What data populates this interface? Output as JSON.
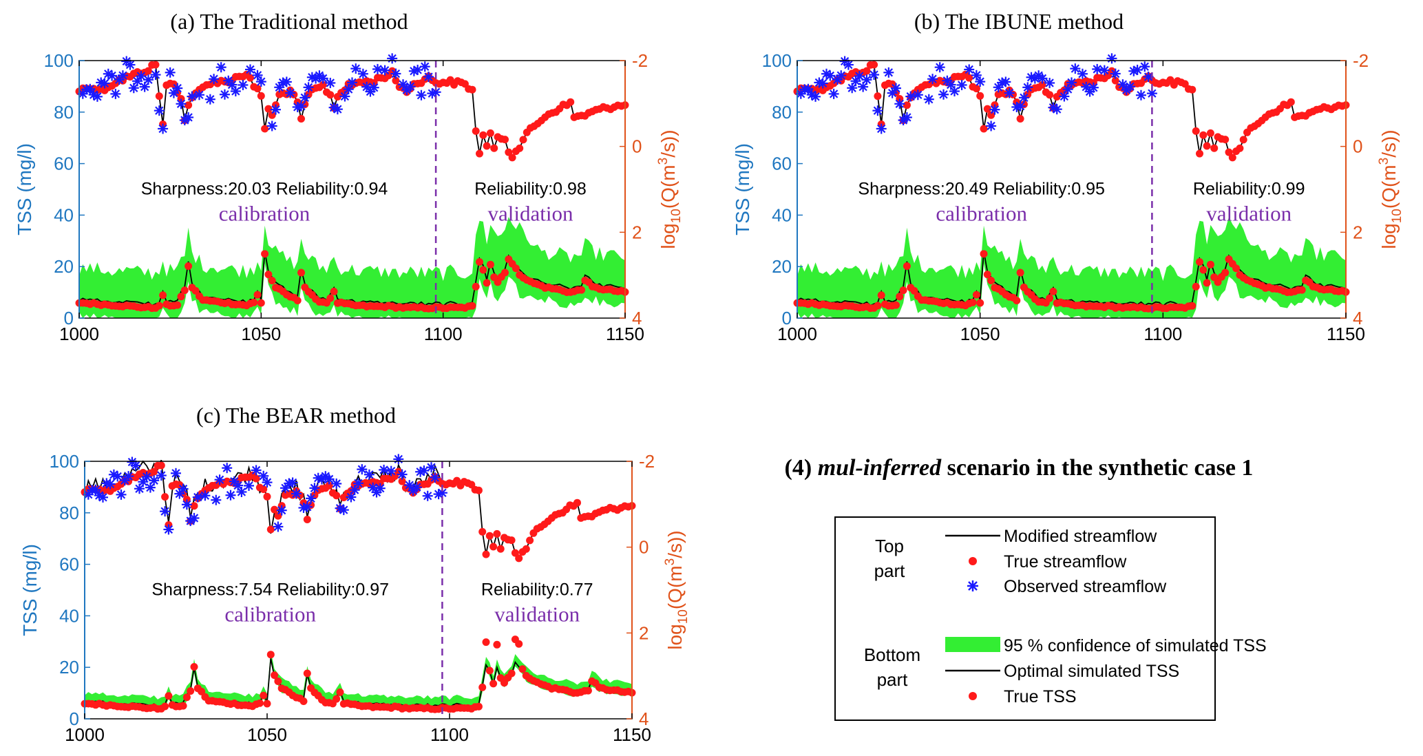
{
  "figure_title": {
    "prefix": "(4) ",
    "italic": "mul-inferred",
    "rest": " scenario in the synthetic case 1"
  },
  "legend": {
    "top_part_label_1": "Top",
    "top_part_label_2": "part",
    "bottom_part_label_1": "Bottom",
    "bottom_part_label_2": "part",
    "items": [
      {
        "label": "Modified streamflow",
        "symbol": "black-line-icon"
      },
      {
        "label": "True streamflow",
        "symbol": "red-dot-icon"
      },
      {
        "label": "Observed streamflow",
        "symbol": "blue-star-icon"
      },
      {
        "label": "95 % confidence of simulated TSS",
        "symbol": "green-band-icon"
      },
      {
        "label": "Optimal simulated TSS",
        "symbol": "black-line-icon"
      },
      {
        "label": "True TSS",
        "symbol": "red-dot-icon"
      }
    ]
  },
  "colors": {
    "left_axis": "#1f77c0",
    "right_axis": "#e0521a",
    "red": "#ff1a1a",
    "blue": "#1a1aff",
    "green": "#33ee33",
    "divider": "#7a2eaa",
    "phase_text": "#7a2eaa"
  },
  "chart_data": [
    {
      "type": "line",
      "title": "(a) The Traditional method",
      "ylabel_left": "TSS (mg/l)",
      "ylabel_right": "log10(Q(m3/s))",
      "ylabel_right_parts": {
        "base": "log",
        "sub": "10",
        "mid": "(Q(m",
        "sup": "3",
        "end": "/s))"
      },
      "xlim": [
        1000,
        1150
      ],
      "ylim_left": [
        0,
        100
      ],
      "ylim_right": [
        4,
        -2
      ],
      "xticks": [
        "1000",
        "1050",
        "1100",
        "1150"
      ],
      "yticks_left": [
        "0",
        "20",
        "40",
        "60",
        "80",
        "100"
      ],
      "yticks_right": [
        "-2",
        "0",
        "2",
        "4"
      ],
      "split_x": 1098,
      "stats_calibration": "Sharpness:20.03  Reliability:0.94",
      "stats_validation": "Reliability:0.98",
      "phase_calibration": "calibration",
      "phase_validation": "validation",
      "band_halfwidth": 12,
      "sim_top_offset": 0,
      "obs_scale": 1.0,
      "sim_bottom_scale": 1.0
    },
    {
      "type": "line",
      "title": "(b) The IBUNE method",
      "ylabel_left": "TSS (mg/l)",
      "ylabel_right": "log10(Q(m3/s))",
      "ylabel_right_parts": {
        "base": "log",
        "sub": "10",
        "mid": "(Q(m",
        "sup": "3",
        "end": "/s))"
      },
      "xlim": [
        1000,
        1150
      ],
      "ylim_left": [
        0,
        100
      ],
      "ylim_right": [
        4,
        -2
      ],
      "xticks": [
        "1000",
        "1050",
        "1100",
        "1150"
      ],
      "yticks_left": [
        "0",
        "20",
        "40",
        "60",
        "80",
        "100"
      ],
      "yticks_right": [
        "-2",
        "0",
        "2",
        "4"
      ],
      "split_x": 1097,
      "stats_calibration": "Sharpness:20.49  Reliability:0.95",
      "stats_validation": "Reliability:0.99",
      "phase_calibration": "calibration",
      "phase_validation": "validation",
      "band_halfwidth": 12,
      "sim_top_offset": 0,
      "obs_scale": 1.0,
      "sim_bottom_scale": 1.0
    },
    {
      "type": "line",
      "title": "(c) The BEAR method",
      "ylabel_left": "TSS (mg/l)",
      "ylabel_right": "log10(Q(m3/s))",
      "ylabel_right_parts": {
        "base": "log",
        "sub": "10",
        "mid": "(Q(m",
        "sup": "3",
        "end": "/s))"
      },
      "xlim": [
        1000,
        1150
      ],
      "ylim_left": [
        0,
        100
      ],
      "ylim_right": [
        4,
        -2
      ],
      "xticks": [
        "1000",
        "1050",
        "1100",
        "1150"
      ],
      "yticks_left": [
        "0",
        "20",
        "40",
        "60",
        "80",
        "100"
      ],
      "yticks_right": [
        "-2",
        "0",
        "2",
        "4"
      ],
      "split_x": 1098,
      "stats_calibration": "Sharpness:7.54  Reliability:0.97",
      "stats_validation": "Reliability:0.77",
      "phase_calibration": "calibration",
      "phase_validation": "validation",
      "band_halfwidth": 3.2,
      "sim_top_offset": -3.5,
      "obs_scale": 1.0,
      "sim_bottom_scale": 0.9
    }
  ]
}
